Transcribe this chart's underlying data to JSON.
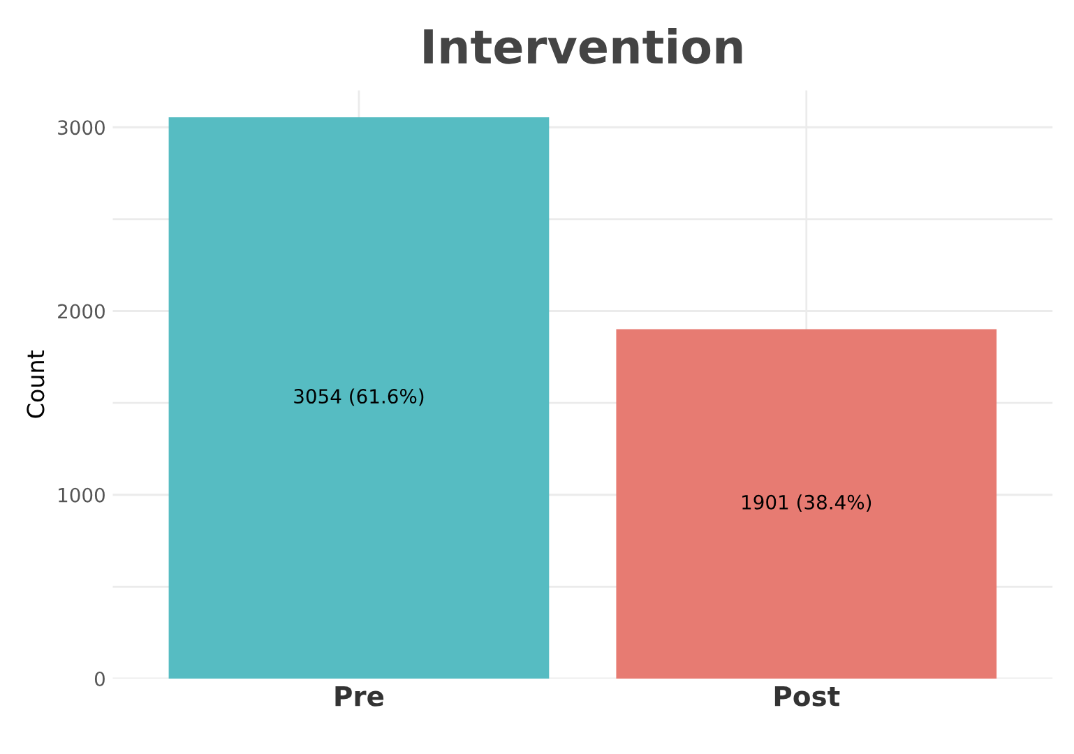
{
  "chart_data": {
    "type": "bar",
    "title": "Intervention",
    "ylabel": "Count",
    "categories": [
      "Pre",
      "Post"
    ],
    "values": [
      3054,
      1901
    ],
    "colors": [
      "#56bcc2",
      "#e77b72"
    ],
    "value_labels": [
      "3054 (61.6%)",
      "1901 (38.4%)"
    ],
    "ylim": [
      0,
      3200
    ],
    "yticks": [
      0,
      {
        "value": 500,
        "label": null
      },
      1000,
      {
        "value": 1500,
        "label": null
      },
      2000,
      {
        "value": 2500,
        "label": null
      },
      3000
    ],
    "grid": true
  }
}
